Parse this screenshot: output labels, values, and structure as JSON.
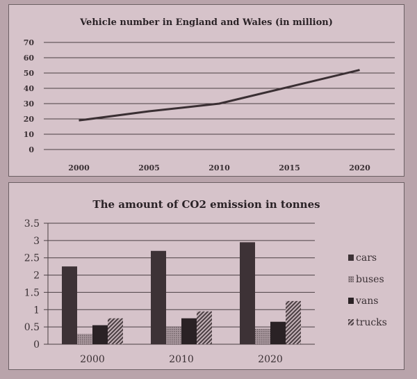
{
  "chart_data": [
    {
      "type": "line",
      "title": "Vehicle number in England and Wales (in million)",
      "x": [
        "2000",
        "2005",
        "2010",
        "2015",
        "2020"
      ],
      "values": [
        19,
        25,
        30,
        41,
        52
      ],
      "ylim": [
        0,
        70
      ],
      "yticks": [
        0,
        10,
        20,
        30,
        40,
        50,
        60,
        70
      ],
      "grid": true,
      "color": "#3a2f33"
    },
    {
      "type": "bar",
      "title": "The amount of CO2 emission in tonnes",
      "categories": [
        "2000",
        "2010",
        "2020"
      ],
      "series": [
        {
          "name": "cars",
          "values": [
            2.25,
            2.7,
            2.95
          ],
          "color": "#3d3236"
        },
        {
          "name": "buses",
          "values": [
            0.3,
            0.5,
            0.45
          ],
          "color": "#9a8a90"
        },
        {
          "name": "vans",
          "values": [
            0.55,
            0.75,
            0.65
          ],
          "color": "#2a2225"
        },
        {
          "name": "trucks",
          "values": [
            0.75,
            0.95,
            1.25
          ],
          "color": "#7d6f74"
        }
      ],
      "ylim": [
        0,
        3.5
      ],
      "yticks": [
        "0",
        "0.5",
        "1",
        "1.5",
        "2",
        "2.5",
        "3",
        "3.5"
      ],
      "grid": true,
      "legend": "right"
    }
  ]
}
